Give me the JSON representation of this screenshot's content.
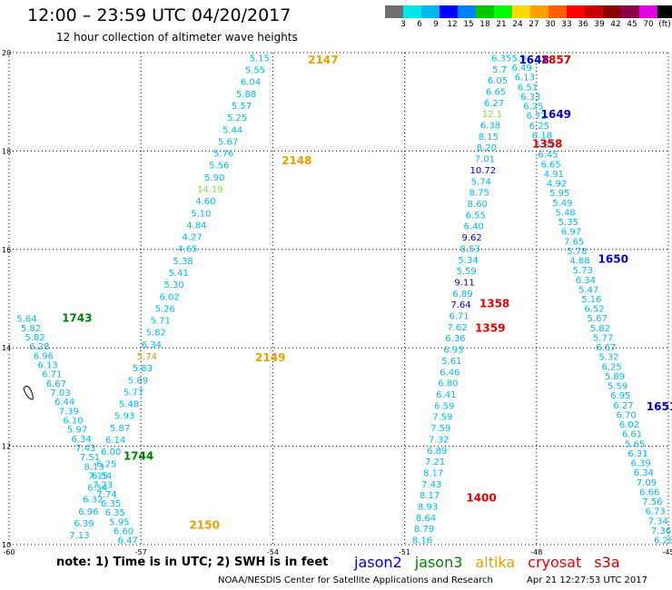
{
  "header": {
    "title": "12:00 – 23:59 UTC 04/20/2017",
    "subtitle": "12 hour collection of altimeter wave heights"
  },
  "colorbar": {
    "colors": [
      "#6e6e6e",
      "#00e5e5",
      "#00b8f0",
      "#0000ff",
      "#0080ff",
      "#00c800",
      "#00ff00",
      "#ffd800",
      "#ffa000",
      "#ff6000",
      "#ff0000",
      "#c80000",
      "#8c0000",
      "#8c0046",
      "#e600e6",
      "#000000"
    ],
    "labels": [
      "3",
      "6",
      "9",
      "12",
      "15",
      "18",
      "21",
      "24",
      "27",
      "30",
      "33",
      "36",
      "39",
      "42",
      "45",
      "70",
      "(ft)"
    ]
  },
  "chart_data": {
    "type": "scatter",
    "title": "12:00 – 23:59 UTC 04/20/2017",
    "xlim": [
      -60,
      -45
    ],
    "ylim": [
      10,
      20
    ],
    "xticks": [
      "-60",
      "-57",
      "-54",
      "-51",
      "-48",
      "-45"
    ],
    "yticks": [
      "20",
      "18",
      "16",
      "14",
      "12",
      "10"
    ],
    "grid": true,
    "tracks": [
      {
        "values": [
          "5.15",
          "5.55",
          "6.04",
          "5.88",
          "5.57",
          "5.25",
          "5.44",
          "5.67",
          "5.76",
          "5.56",
          "5.90",
          "14.19",
          "4.60",
          "5.10",
          "4.84",
          "4.27",
          "4.65",
          "5.38",
          "5.41",
          "5.30",
          "6.02",
          "5.26",
          "5.71",
          "5.82",
          "6.34",
          "5.74",
          "5.83",
          "5.89",
          "5.77",
          "5.48",
          "5.93",
          "5.87",
          "6.14",
          "6.00",
          "6.25",
          "6.54",
          "6.54",
          "6.32",
          "6.96",
          "6.39",
          "7.13"
        ],
        "colors": {
          "11": "#7ddc4a",
          "25": "#c8a000"
        },
        "x_start": -54.3,
        "x_end": -58.4,
        "y_start": 19.9,
        "y_end": 10.2
      },
      {
        "values": [
          "5.64",
          "5.82",
          "5.82",
          "6.28",
          "6.96",
          "6.13",
          "6.71",
          "6.67",
          "7.03",
          "6.44",
          "7.39",
          "6.10",
          "5.97",
          "6.34",
          "7.43",
          "7.51",
          "8.13",
          "7.15",
          "7.23",
          "7.74",
          "6.35",
          "6.35",
          "5.95",
          "6.60",
          "6.47"
        ],
        "x_start": -59.6,
        "x_end": -57.3,
        "y_start": 14.6,
        "y_end": 10.1
      },
      {
        "values": [
          "6.35",
          "5.7",
          "6.05",
          "6.65",
          "6.27",
          "12.1",
          "6.38",
          "8.15",
          "8.20",
          "7.01",
          "10.72",
          "5.74",
          "8.75",
          "8.60",
          "6.55",
          "6.40",
          "9.62",
          "8.53",
          "5.34",
          "5.59",
          "9.11",
          "6.89",
          "7.64",
          "6.71",
          "7.62",
          "6.36",
          "6.93",
          "5.61",
          "6.46",
          "6.80",
          "6.41",
          "6.59",
          "7.59",
          "7.59",
          "7.32",
          "6.89",
          "7.21",
          "8.17",
          "7.43",
          "8.17",
          "8.93",
          "8.64",
          "8.79",
          "8.16"
        ],
        "colors": {
          "5": "#7ddc4a",
          "10": "#0000c8",
          "16": "#0000c8",
          "20": "#0000c8",
          "22": "#0000c8"
        },
        "x_start": -48.8,
        "x_end": -50.6,
        "y_start": 19.9,
        "y_end": 10.1
      },
      {
        "values": [
          "5.9",
          "6.49",
          "6.13",
          "6.51",
          "6.33",
          "6.25",
          "6.72",
          "6.25",
          "6.18",
          "5.80",
          "6.45",
          "6.65",
          "4.91",
          "4.92",
          "5.95",
          "5.49",
          "5.48",
          "5.35",
          "6.97",
          "7.65",
          "5.78",
          "4.88",
          "5.73",
          "6.34",
          "5.47",
          "5.16",
          "6.52",
          "5.67",
          "5.82",
          "5.77",
          "6.67",
          "5.32",
          "6.25",
          "5.89",
          "5.59",
          "6.95",
          "6.27",
          "6.70",
          "6.02",
          "6.61",
          "5.65",
          "6.31",
          "6.39",
          "6.34",
          "7.09",
          "6.66",
          "7.56",
          "6.73",
          "7.34",
          "7.36",
          "6.28"
        ],
        "x_start": -48.4,
        "x_end": -45.1,
        "y_start": 19.9,
        "y_end": 10.1
      }
    ],
    "pass_labels": [
      {
        "text": "2147",
        "x": -53.2,
        "y": 19.85,
        "color": "#e6a000"
      },
      {
        "text": "2148",
        "x": -53.8,
        "y": 17.8,
        "color": "#e6a000"
      },
      {
        "text": "2149",
        "x": -54.4,
        "y": 13.8,
        "color": "#e6a000"
      },
      {
        "text": "2150",
        "x": -55.9,
        "y": 10.4,
        "color": "#e6a000"
      },
      {
        "text": "1743",
        "x": -58.8,
        "y": 14.6,
        "color": "#008000"
      },
      {
        "text": "1744",
        "x": -57.4,
        "y": 11.8,
        "color": "#008000"
      },
      {
        "text": "1648",
        "x": -48.4,
        "y": 19.85,
        "color": "#0000c8"
      },
      {
        "text": "1857",
        "x": -47.9,
        "y": 19.85,
        "color": "#e00000"
      },
      {
        "text": "1649",
        "x": -47.9,
        "y": 18.75,
        "color": "#0000c8"
      },
      {
        "text": "1358",
        "x": -48.1,
        "y": 18.15,
        "color": "#e00000"
      },
      {
        "text": "1650",
        "x": -46.6,
        "y": 15.8,
        "color": "#0000c8"
      },
      {
        "text": "1358",
        "x": -49.3,
        "y": 14.9,
        "color": "#e00000"
      },
      {
        "text": "1359",
        "x": -49.4,
        "y": 14.4,
        "color": "#e00000"
      },
      {
        "text": "1651",
        "x": -45.5,
        "y": 12.8,
        "color": "#0000c8"
      },
      {
        "text": "1400",
        "x": -49.6,
        "y": 10.95,
        "color": "#e00000"
      }
    ]
  },
  "footer": {
    "note": "note: 1) Time is in UTC; 2) SWH is in feet",
    "legend": [
      {
        "name": "jason2",
        "color": "#0000c8"
      },
      {
        "name": "jason3",
        "color": "#008000"
      },
      {
        "name": "altika",
        "color": "#e6a000"
      },
      {
        "name": "cryosat",
        "color": "#e00000"
      },
      {
        "name": "s3a",
        "color": "#c80000"
      }
    ],
    "credit": "NOAA/NESDIS Center for Satellite Applications and Research",
    "timestamp": "Apr 21 12:27:53 UTC 2017"
  }
}
